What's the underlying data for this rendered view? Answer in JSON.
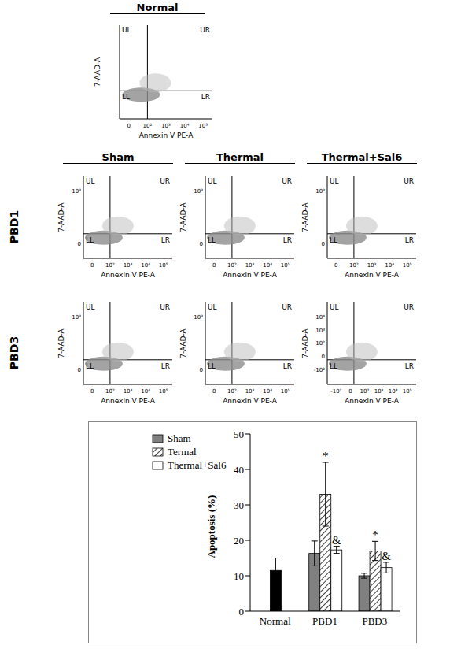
{
  "panels": {
    "x_label": "Annexin V PE-A",
    "y_label": "7-AAD-A",
    "quadrants": [
      "UL",
      "UR",
      "LL",
      "LR"
    ],
    "normal": {
      "title": "Normal",
      "xticks": [
        "0",
        "10²",
        "10³",
        "10⁴",
        "10⁵"
      ]
    },
    "columns": [
      "Sham",
      "Thermal",
      "Thermal+Sal6"
    ],
    "rows": [
      {
        "label": "PBD1",
        "cells": [
          {
            "xticks": [
              "0",
              "10²",
              "10³",
              "10⁴",
              "10⁵"
            ],
            "yticks": [
              "0",
              "10³"
            ]
          },
          {
            "xticks": [
              "0",
              "10²",
              "10³",
              "10⁴",
              "10⁵"
            ],
            "yticks": [
              "0",
              "10³"
            ]
          },
          {
            "xticks": [
              "0",
              "10²",
              "10³",
              "10⁴",
              "10⁵"
            ],
            "yticks": [
              "0",
              "10³"
            ]
          }
        ]
      },
      {
        "label": "PBD3",
        "cells": [
          {
            "xticks": [
              "0",
              "10²",
              "10³",
              "10⁴",
              "10⁵"
            ],
            "yticks": [
              "0",
              "10³"
            ]
          },
          {
            "xticks": [
              "0",
              "10²",
              "10³",
              "10⁴",
              "10⁵"
            ],
            "yticks": [
              "0",
              "10³"
            ]
          },
          {
            "xticks": [
              "-10²",
              "0",
              "10²",
              "10³",
              "10⁴",
              "10⁵"
            ],
            "yticks": [
              "-10²",
              "0",
              "10²",
              "10³",
              "10⁴"
            ]
          }
        ]
      }
    ]
  },
  "chart_data": {
    "type": "bar",
    "y_label": "Apoptosis (%)",
    "categories": [
      "Normal",
      "PBD1",
      "PBD3"
    ],
    "ylim": [
      0,
      50
    ],
    "yticks": [
      0,
      10,
      20,
      30,
      40,
      50
    ],
    "legend": "upper left",
    "series": [
      {
        "name": "Sham",
        "color": "#808080",
        "values": [
          null,
          16.3,
          10
        ],
        "errors": [
          null,
          3.5,
          0.7
        ]
      },
      {
        "color": "#000000",
        "values": [
          11.5,
          null,
          null
        ],
        "errors": [
          3.5,
          null,
          null
        ]
      },
      {
        "name": "Termal",
        "color": "#404040",
        "values": [
          null,
          33,
          17
        ],
        "errors": [
          null,
          9,
          2.7
        ],
        "marks": [
          null,
          "*",
          "*"
        ]
      },
      {
        "name": "Thermal+Sal6",
        "color": "#ffffff",
        "values": [
          null,
          17.3,
          12.3
        ],
        "errors": [
          null,
          1,
          1.5
        ],
        "marks": [
          null,
          "&",
          "&"
        ]
      }
    ]
  }
}
